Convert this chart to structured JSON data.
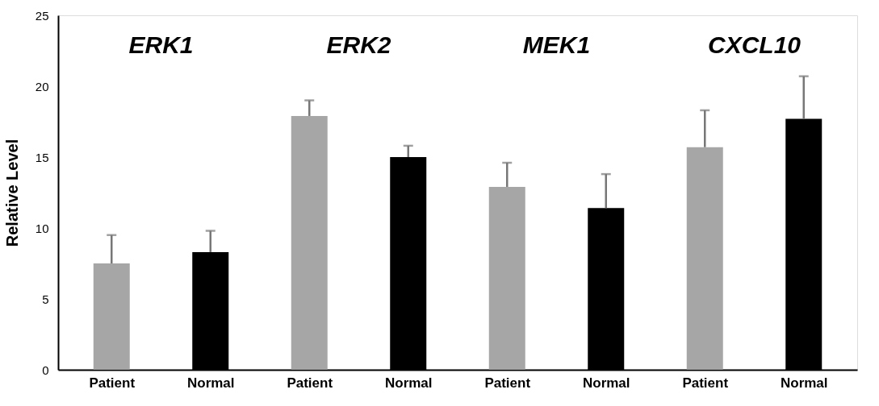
{
  "chart_data": {
    "type": "bar",
    "ylabel": "Relative Level",
    "categories": [
      "Patient",
      "Normal",
      "Patient",
      "Normal",
      "Patient",
      "Normal",
      "Patient",
      "Normal"
    ],
    "values": [
      7.5,
      8.3,
      17.9,
      15.0,
      12.9,
      11.4,
      15.7,
      17.7
    ],
    "errors": [
      [
        7.5,
        9.5
      ],
      [
        8.3,
        9.8
      ],
      [
        17.9,
        19.0
      ],
      [
        15.0,
        15.8
      ],
      [
        12.9,
        14.6
      ],
      [
        11.4,
        13.8
      ],
      [
        15.7,
        18.3
      ],
      [
        17.7,
        20.7
      ]
    ],
    "colors": [
      "#a6a6a6",
      "#000000",
      "#a6a6a6",
      "#000000",
      "#a6a6a6",
      "#000000",
      "#a6a6a6",
      "#000000"
    ],
    "annotations": [
      "ERK1",
      "ERK2",
      "MEK1",
      "CXCL10"
    ],
    "ylim": [
      0,
      25
    ],
    "yticks": [
      0,
      5,
      10,
      15,
      20,
      25
    ],
    "grid": false
  }
}
